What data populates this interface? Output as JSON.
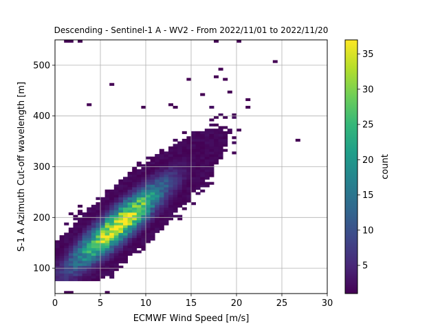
{
  "chart_data": {
    "type": "heatmap",
    "title": "Descending - Sentinel-1 A - WV2 - From 2022/11/01 to 2022/11/20",
    "xlabel": "ECMWF Wind Speed [m/s]",
    "ylabel": "S-1 A Azimuth Cut-off wavelength [m]",
    "xlim": [
      0,
      30
    ],
    "ylim": [
      50,
      550
    ],
    "x_ticks": [
      0,
      5,
      10,
      15,
      20,
      25,
      30
    ],
    "y_ticks": [
      100,
      200,
      300,
      400,
      500
    ],
    "grid": true,
    "colormap": "viridis",
    "colorbar": {
      "label": "count",
      "range": [
        1,
        37
      ],
      "ticks": [
        5,
        10,
        15,
        20,
        25,
        30,
        35
      ]
    },
    "bin_size": {
      "x": 0.5,
      "y": 5
    },
    "density_model": {
      "center_speed": 7,
      "center_wavelength": 185,
      "slope": 14.5,
      "speed_spread": 3.4,
      "wavelength_spread": 24,
      "peak_count": 37
    },
    "outliers": [
      [
        24.4,
        505
      ],
      [
        26.8,
        350
      ],
      [
        20.2,
        548
      ],
      [
        21.3,
        418
      ],
      [
        18.0,
        490
      ],
      [
        17.9,
        475
      ],
      [
        6.0,
        462
      ],
      [
        3.9,
        421
      ],
      [
        1.0,
        548
      ],
      [
        1.8,
        548
      ],
      [
        2.9,
        548
      ],
      [
        17.9,
        548
      ],
      [
        19.0,
        445
      ],
      [
        21.0,
        433
      ],
      [
        1.0,
        88
      ],
      [
        0.4,
        88
      ],
      [
        1.0,
        52
      ],
      [
        1.9,
        52
      ],
      [
        5.5,
        52
      ],
      [
        14.5,
        470
      ],
      [
        16.4,
        440
      ],
      [
        13.2,
        415
      ],
      [
        12.6,
        420
      ],
      [
        9.9,
        418
      ],
      [
        18.5,
        470
      ]
    ]
  },
  "colors": {
    "grid": "#b0b0b0",
    "axis": "#000000",
    "viridis": [
      "#440154",
      "#482878",
      "#3e4989",
      "#31688e",
      "#26828e",
      "#1f9e89",
      "#35b779",
      "#6ece58",
      "#b5de2b",
      "#fde725"
    ]
  }
}
